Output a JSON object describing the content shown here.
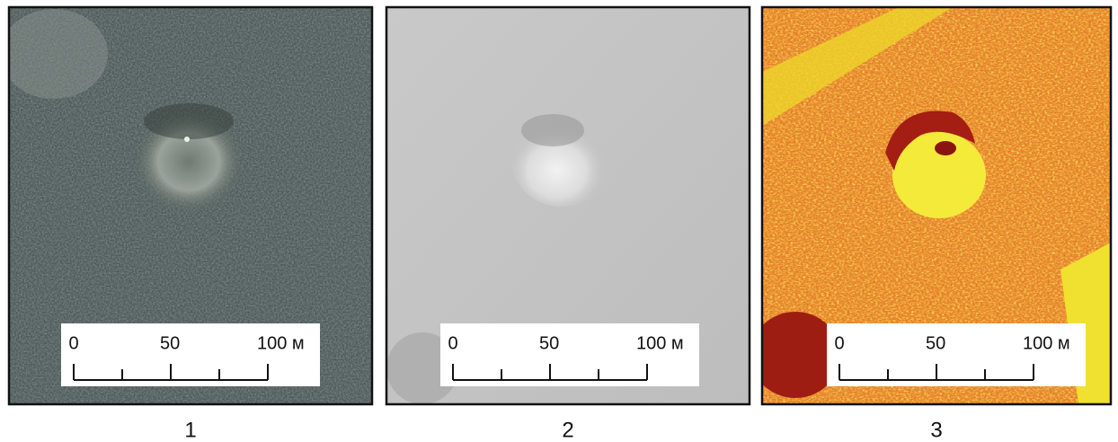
{
  "panels": [
    {
      "label": "1",
      "scale": [
        "0",
        "50",
        "100 м"
      ]
    },
    {
      "label": "2",
      "scale": [
        "0",
        "50",
        "100 м"
      ]
    },
    {
      "label": "3",
      "scale": [
        "0",
        "50",
        "100 м"
      ]
    }
  ]
}
